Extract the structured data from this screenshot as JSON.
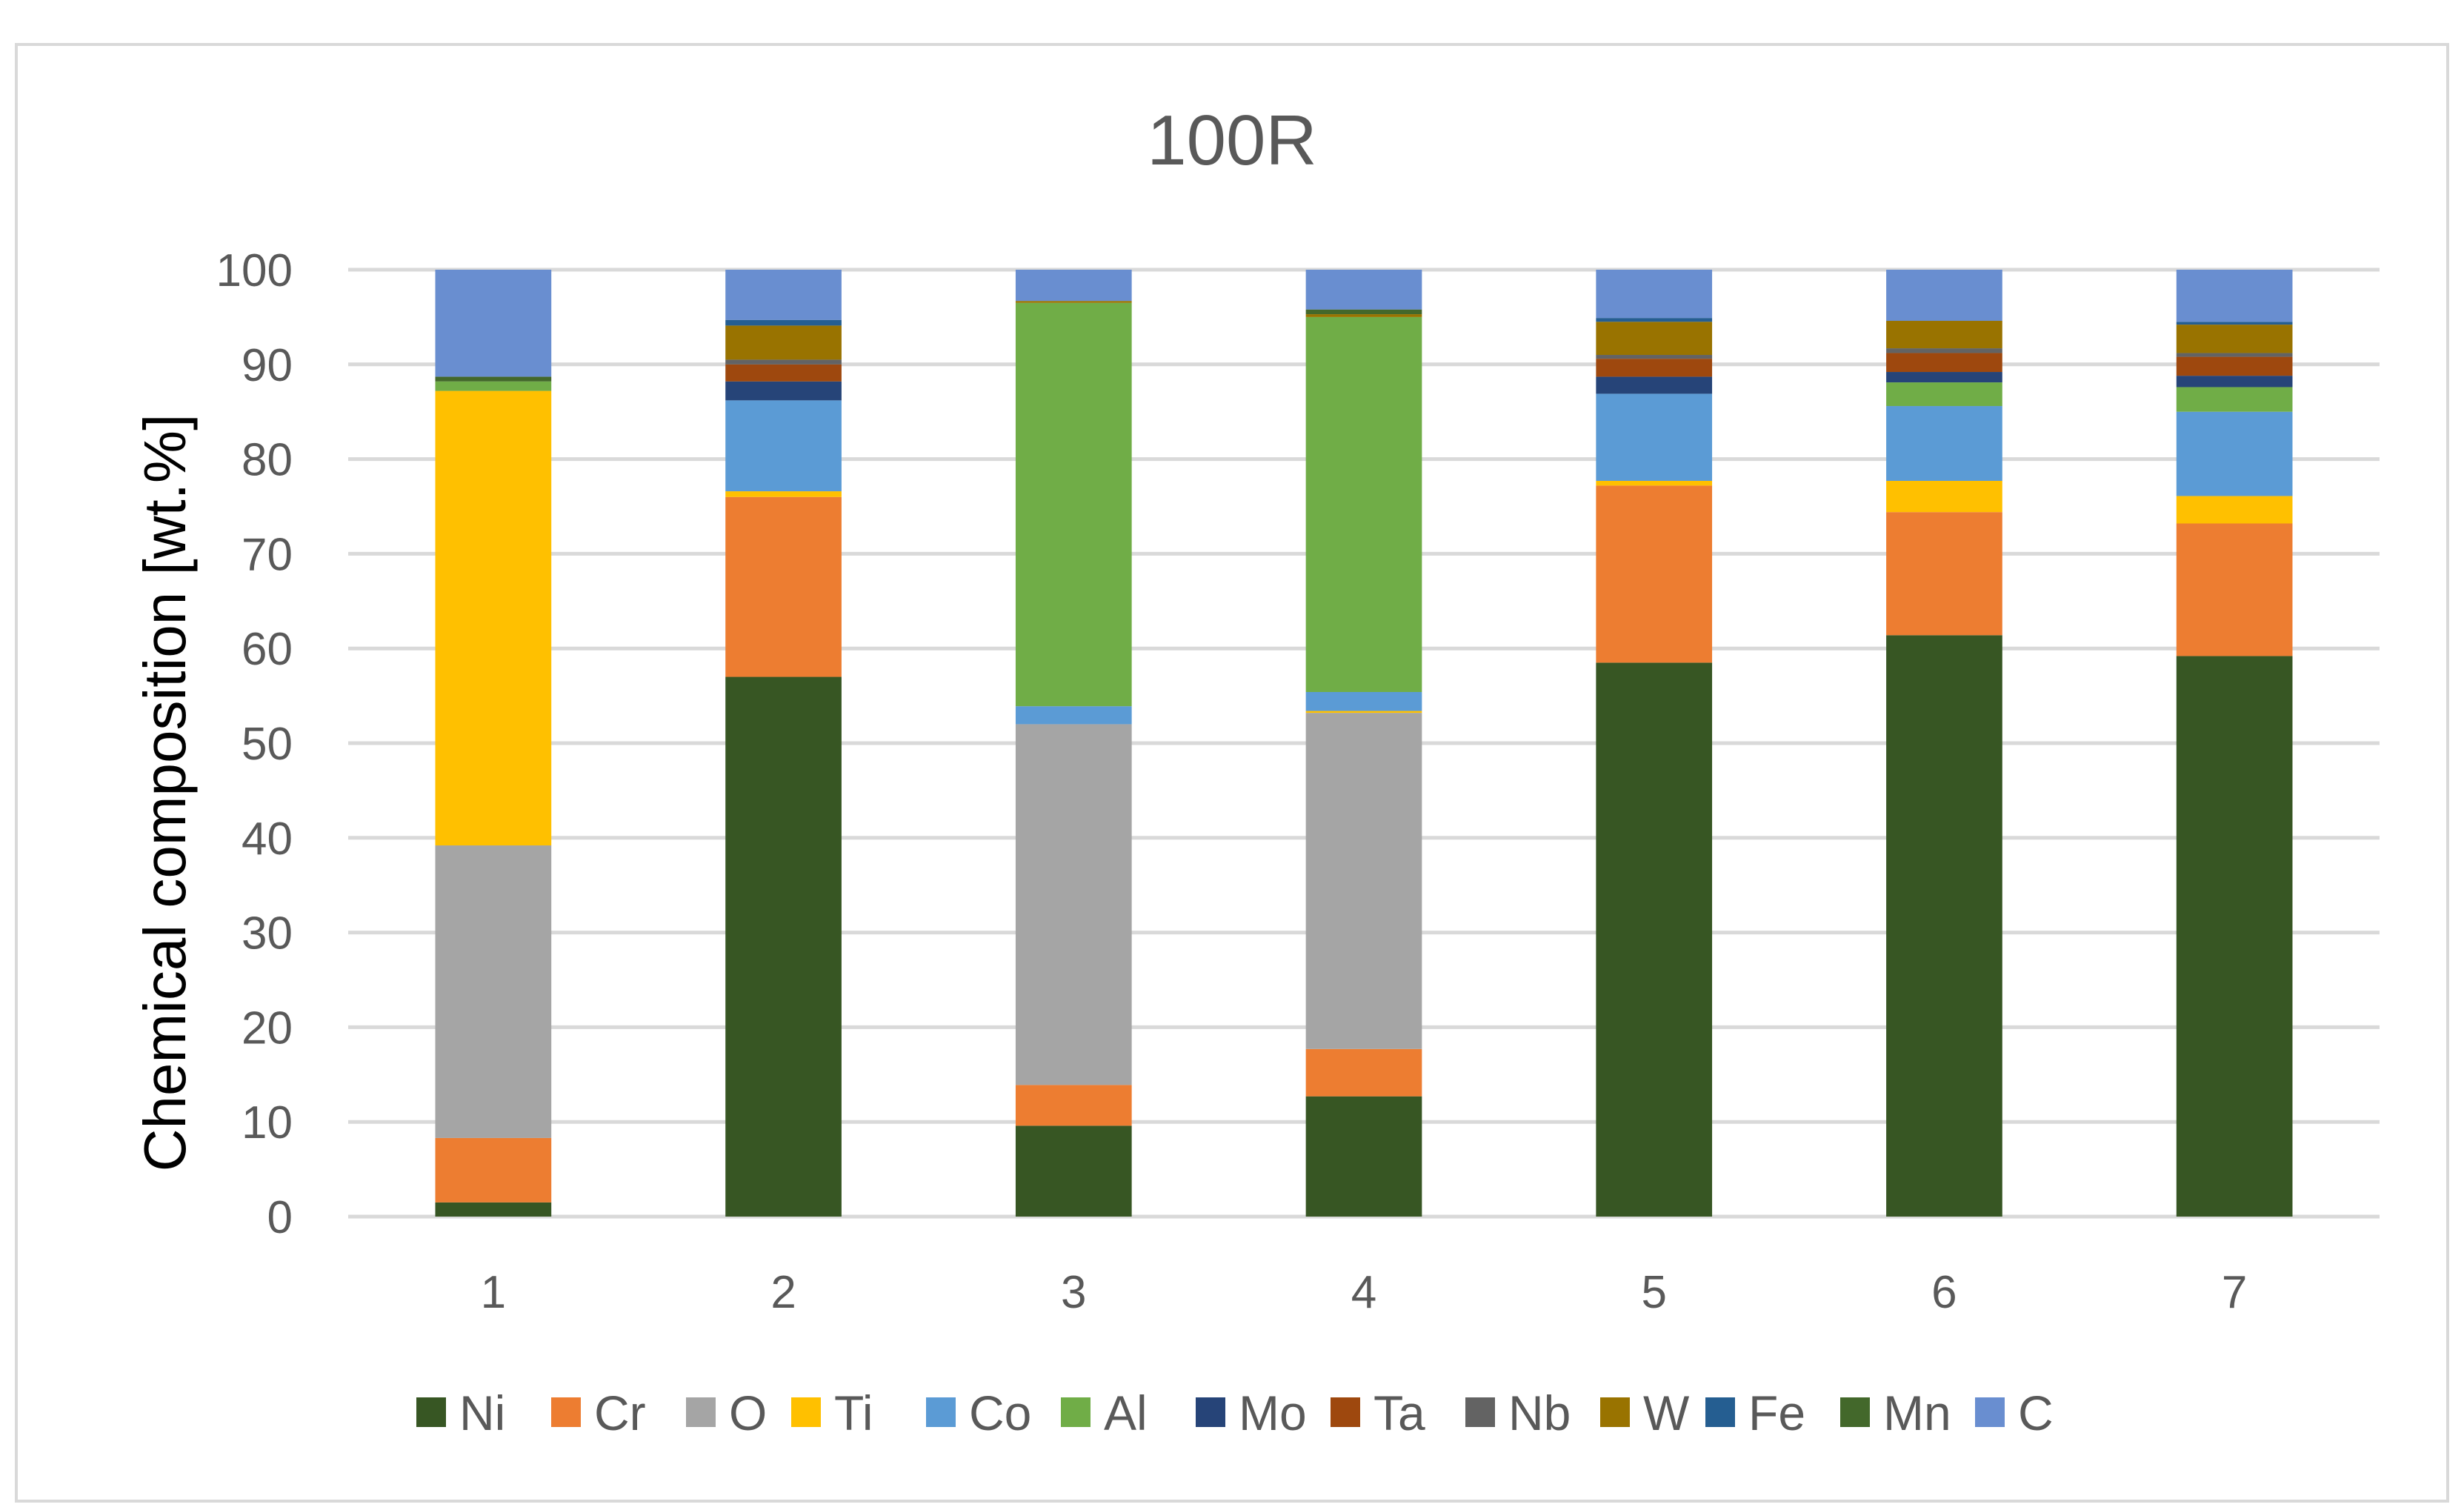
{
  "chart_data": {
    "type": "bar",
    "stacked": true,
    "title": "100R",
    "xlabel": "",
    "ylabel": "Chemical composition [wt.%]",
    "ylim": [
      0,
      100
    ],
    "yticks": [
      "0",
      "10",
      "20",
      "30",
      "40",
      "50",
      "60",
      "70",
      "80",
      "90",
      "100"
    ],
    "categories": [
      "1",
      "2",
      "3",
      "4",
      "5",
      "6",
      "7"
    ],
    "grid": true,
    "legend_position": "bottom",
    "series": [
      {
        "name": "Ni",
        "color": "#375623",
        "values": [
          1.5,
          57.0,
          9.6,
          12.7,
          58.5,
          61.4,
          59.2
        ]
      },
      {
        "name": "Cr",
        "color": "#ED7D31",
        "values": [
          6.8,
          19.0,
          4.3,
          5.0,
          18.7,
          13.0,
          14.0
        ]
      },
      {
        "name": "O",
        "color": "#A5A5A5",
        "values": [
          30.9,
          0.0,
          38.1,
          35.5,
          0.0,
          0.0,
          0.0
        ]
      },
      {
        "name": "Ti",
        "color": "#FFC000",
        "values": [
          48.0,
          0.6,
          0.0,
          0.2,
          0.5,
          3.3,
          2.9
        ]
      },
      {
        "name": "Co",
        "color": "#5B9BD5",
        "values": [
          0.0,
          9.6,
          1.9,
          2.0,
          9.2,
          7.9,
          8.9
        ]
      },
      {
        "name": "Al",
        "color": "#70AD47",
        "values": [
          1.0,
          0.0,
          42.6,
          39.6,
          0.0,
          2.5,
          2.6
        ]
      },
      {
        "name": "Mo",
        "color": "#264478",
        "values": [
          0.0,
          2.0,
          0.0,
          0.0,
          1.8,
          1.1,
          1.2
        ]
      },
      {
        "name": "Ta",
        "color": "#9E480E",
        "values": [
          0.0,
          1.8,
          0.0,
          0.0,
          1.9,
          2.0,
          2.0
        ]
      },
      {
        "name": "Nb",
        "color": "#636363",
        "values": [
          0.0,
          0.5,
          0.0,
          0.0,
          0.4,
          0.5,
          0.4
        ]
      },
      {
        "name": "W",
        "color": "#997300",
        "values": [
          0.0,
          3.6,
          0.2,
          0.3,
          3.5,
          2.9,
          3.0
        ]
      },
      {
        "name": "Fe",
        "color": "#255E91",
        "values": [
          0.0,
          0.6,
          0.0,
          0.0,
          0.4,
          0.0,
          0.3
        ]
      },
      {
        "name": "Mn",
        "color": "#43682B",
        "values": [
          0.5,
          0.0,
          0.0,
          0.5,
          0.0,
          0.0,
          0.0
        ]
      },
      {
        "name": "C",
        "color": "#698ED0",
        "values": [
          11.3,
          5.3,
          3.3,
          4.2,
          5.1,
          5.4,
          5.5
        ]
      }
    ]
  }
}
